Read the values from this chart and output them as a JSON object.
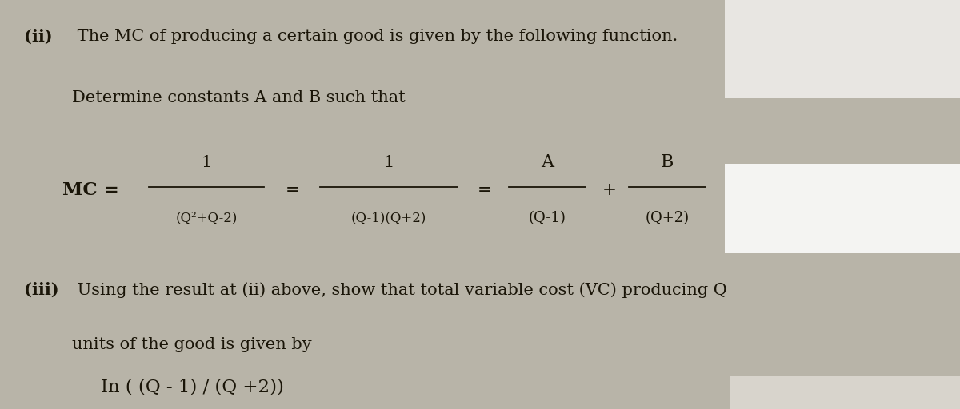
{
  "bg_color": "#b8b4a8",
  "text_color": "#1a1508",
  "fig_width": 12.0,
  "fig_height": 5.12,
  "part_ii_label": "(ii)",
  "part_ii_text1": " The MC of producing a certain good is given by the following function.",
  "part_ii_text2": "Determine constants A and B such that",
  "part_iii_label": "(iii)",
  "part_iii_text1": " Using the result at (ii) above, show that total variable cost (VC) producing Q",
  "part_iii_text2": "units of the good is given by",
  "ln_text": "In ( (Q - 1) / (Q +2))",
  "mc_label": "MC =",
  "frac1_num": "1",
  "frac1_den": "(Q²+Q-2)",
  "frac2_num": "1",
  "frac2_den": "(Q-1)(Q+2)",
  "frac3_num": "A",
  "frac3_den": "(Q-1)",
  "frac4_num": "B",
  "frac4_den": "(Q+2)",
  "eq": "=",
  "plus": "+",
  "white_block1": [
    0.755,
    0.76,
    0.245,
    0.24
  ],
  "white_block2": [
    0.755,
    0.38,
    0.245,
    0.22
  ],
  "white_block3": [
    0.76,
    0.0,
    0.24,
    0.08
  ],
  "wb1_color": "#e8e6e2",
  "wb2_color": "#f4f4f2",
  "wb3_color": "#d8d4cc"
}
